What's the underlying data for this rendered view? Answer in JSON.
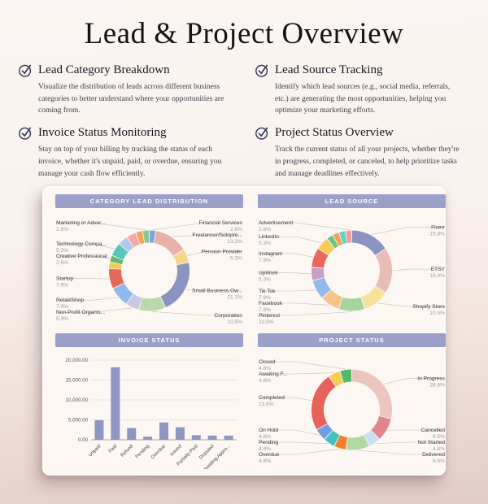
{
  "page": {
    "title": "Lead & Project Overview"
  },
  "features": [
    {
      "icon": "check-circle",
      "title": "Lead Category Breakdown",
      "description": "Visualize the distribution of leads across different business categories to better understand where your opportunities are coming from."
    },
    {
      "icon": "check-circle",
      "title": "Lead Source Tracking",
      "description": "Identify which lead sources (e.g., social media, referrals, etc.) are generating the most opportunities, helping you optimize your marketing efforts."
    },
    {
      "icon": "check-circle",
      "title": "Invoice Status Monitoring",
      "description": "Stay on top of your billing by tracking the status of each invoice, whether it's unpaid, paid, or overdue, ensuring you manage your cash flow efficiently."
    },
    {
      "icon": "check-circle",
      "title": "Project Status Overview",
      "description": "Track the current status of all your projects, whether they're in progress, completed, or canceled, to help prioritize tasks and manage deadlines effectively."
    }
  ],
  "colors": {
    "page_background_top": "#fbf6f3",
    "page_background_bottom": "#e1ccc6",
    "card_background": "#fdf7f3",
    "panel_header": "#9aa0c8",
    "bar_fill": "#8e96c2",
    "check_icon": "#2f3550",
    "label_text": "#3a3a40",
    "percent_text": "#9b9b9b"
  },
  "chart_data": [
    {
      "type": "donut",
      "title": "CATEGORY LEAD DISTRIBUTION",
      "slices": [
        {
          "label": "Financial Services",
          "value": 2.6,
          "color": "#7ea6dc"
        },
        {
          "label": "Freelancer/Solopre...",
          "value": 13.2,
          "color": "#e7b0a8"
        },
        {
          "label": "Pension Provider",
          "value": 5.3,
          "color": "#f6d78a"
        },
        {
          "label": "Small Business Ow...",
          "value": 21.1,
          "color": "#8b93c0"
        },
        {
          "label": "Corporation",
          "value": 10.5,
          "color": "#b9d8ab"
        },
        {
          "label": "Non-Profit Organis...",
          "value": 5.3,
          "color": "#c9c6e6"
        },
        {
          "label": "Retail/Shop",
          "value": 7.9,
          "color": "#8fb9ea"
        },
        {
          "label": "Startup",
          "value": 7.9,
          "color": "#e8685c"
        },
        {
          "label": "",
          "value": 2.6,
          "color": "#f3c94e"
        },
        {
          "label": "Creative Professional",
          "value": 2.6,
          "color": "#5eba6e"
        },
        {
          "label": "Technology Compa...",
          "value": 5.3,
          "color": "#57c7ba"
        },
        {
          "label": "",
          "value": 3.9,
          "color": "#aec8ee"
        },
        {
          "label": "",
          "value": 3.9,
          "color": "#f3aba6"
        },
        {
          "label": "",
          "value": 2.6,
          "color": "#f3a259"
        },
        {
          "label": "Marketing or Adver...",
          "value": 2.6,
          "color": "#82ca90"
        }
      ]
    },
    {
      "type": "donut",
      "title": "LEAD SOURCE",
      "slices": [
        {
          "label": "Fiverr",
          "value": 15.8,
          "color": "#8b93c0"
        },
        {
          "label": "ETSY",
          "value": 18.4,
          "color": "#e9bdb5"
        },
        {
          "label": "Shopify Store",
          "value": 10.5,
          "color": "#f8e19c"
        },
        {
          "label": "Pinterest",
          "value": 10.5,
          "color": "#a6d39e"
        },
        {
          "label": "Facebook",
          "value": 7.9,
          "color": "#f6c489"
        },
        {
          "label": "Tik Tok",
          "value": 7.9,
          "color": "#90baea"
        },
        {
          "label": "UpWork",
          "value": 5.3,
          "color": "#c79ec4"
        },
        {
          "label": "Instagram",
          "value": 7.9,
          "color": "#e8685c"
        },
        {
          "label": "LinkedIn",
          "value": 5.3,
          "color": "#f3cb55"
        },
        {
          "label": "",
          "value": 2.6,
          "color": "#6cc47e"
        },
        {
          "label": "",
          "value": 2.6,
          "color": "#f59e56"
        },
        {
          "label": "",
          "value": 2.6,
          "color": "#66cfc9"
        },
        {
          "label": "Advertisement",
          "value": 2.6,
          "color": "#f0a099"
        }
      ]
    },
    {
      "type": "bar",
      "title": "INVOICE STATUS",
      "categories": [
        "Unpaid",
        "Paid",
        "Refund",
        "Pending",
        "Overdue",
        "Issued",
        "Partially Paid",
        "Disputed",
        "Awaiting Appro..."
      ],
      "values": [
        4900,
        18200,
        2950,
        800,
        4350,
        3150,
        1150,
        1050,
        1050
      ],
      "ylim": [
        0,
        20000
      ],
      "yticks": [
        0,
        5000,
        10000,
        15000,
        20000
      ],
      "ytick_labels": [
        "0.00",
        "5,000.00",
        "10,000.00",
        "15,000.00",
        "20,000.00"
      ],
      "grid": true
    },
    {
      "type": "donut",
      "title": "PROJECT STATUS",
      "slices": [
        {
          "label": "In Progress",
          "value": 28.6,
          "color": "#ecc5be"
        },
        {
          "label": "Cancelled",
          "value": 9.5,
          "color": "#e2858c"
        },
        {
          "label": "Not Started",
          "value": 4.8,
          "color": "#cadff2"
        },
        {
          "label": "Delivered",
          "value": 9.5,
          "color": "#b4d8a2"
        },
        {
          "label": "Overdue",
          "value": 4.8,
          "color": "#f08032"
        },
        {
          "label": "Pending",
          "value": 4.8,
          "color": "#3fc3c0"
        },
        {
          "label": "On Hold",
          "value": 4.8,
          "color": "#6f9ce8"
        },
        {
          "label": "Completed",
          "value": 23.8,
          "color": "#e8625c"
        },
        {
          "label": "Awaiting F...",
          "value": 4.8,
          "color": "#f5cd50"
        },
        {
          "label": "Closed",
          "value": 4.8,
          "color": "#56b969"
        }
      ]
    }
  ]
}
